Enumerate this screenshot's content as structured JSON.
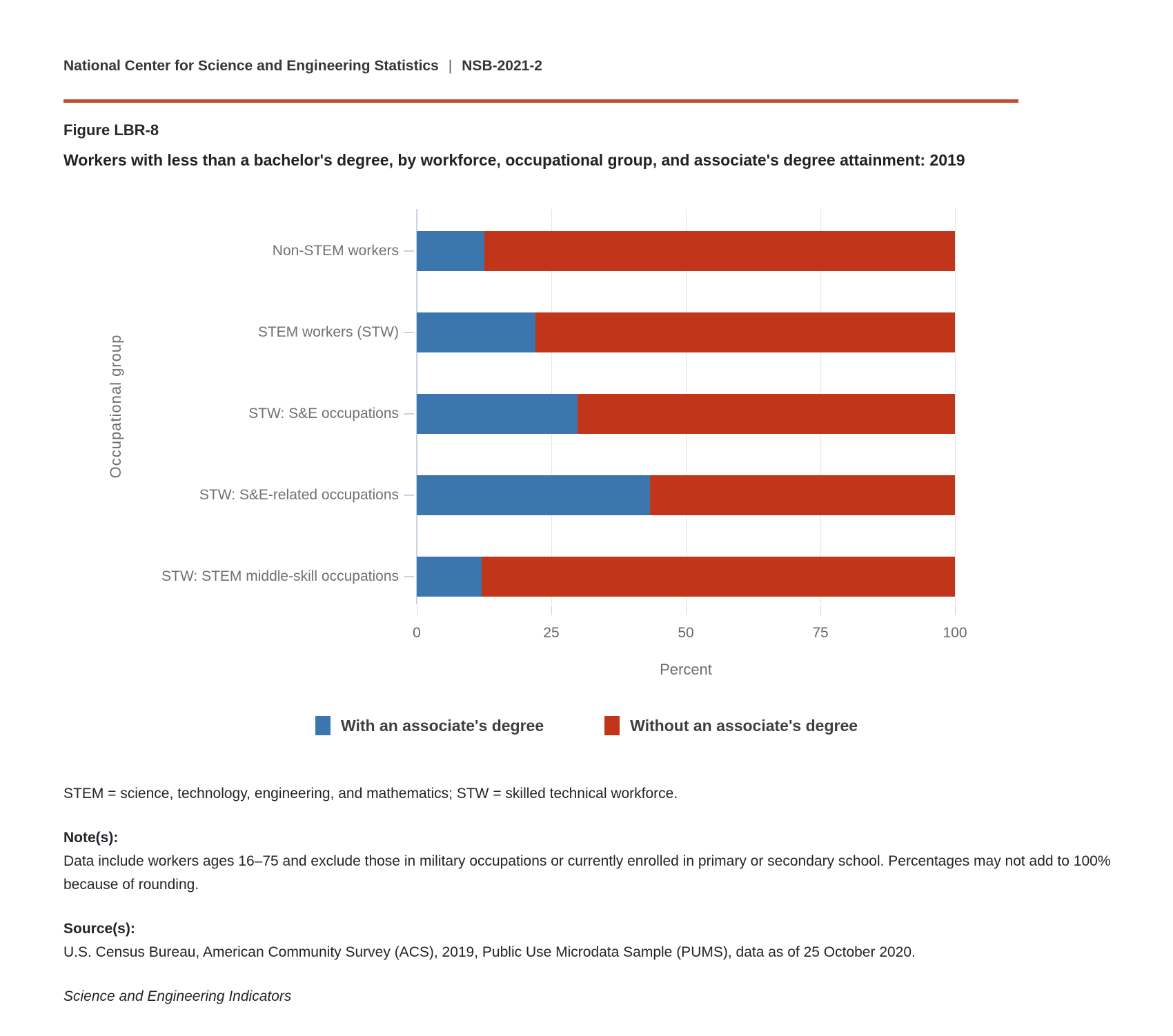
{
  "header": {
    "org": "National Center for Science and Engineering Statistics",
    "separator": "|",
    "report_id": "NSB-2021-2"
  },
  "figure": {
    "label": "Figure LBR-8",
    "title": "Workers with less than a bachelor's degree, by workforce, occupational group, and associate's degree attainment: 2019"
  },
  "chart_data": {
    "type": "bar",
    "orientation": "horizontal",
    "stacked": true,
    "categories": [
      "Non-STEM workers",
      "STEM workers (STW)",
      "STW: S&E occupations",
      "STW: S&E-related occupations",
      "STW: STEM middle-skill occupations"
    ],
    "series": [
      {
        "name": "With an associate's degree",
        "color": "#3b76af",
        "values": [
          12.6,
          22.0,
          29.9,
          43.3,
          12.0
        ]
      },
      {
        "name": "Without an associate's degree",
        "color": "#c1351b",
        "values": [
          87.4,
          78.0,
          70.1,
          56.7,
          88.0
        ]
      }
    ],
    "xlabel": "Percent",
    "ylabel": "Occupational group",
    "xlim": [
      0,
      100
    ],
    "xticks": [
      0,
      25,
      50,
      75,
      100
    ],
    "grid": true,
    "legend_position": "bottom"
  },
  "footnotes": {
    "abbreviations": "STEM = science, technology, engineering, and mathematics; STW = skilled technical workforce.",
    "notes_label": "Note(s):",
    "notes_text": "Data include workers ages 16–75 and exclude those in military occupations or currently enrolled in primary or secondary school. Percentages may not add to 100% because of rounding.",
    "sources_label": "Source(s):",
    "sources_text": "U.S. Census Bureau, American Community Survey (ACS), 2019, Public Use Microdata Sample (PUMS), data as of 25 October 2020.",
    "publication": "Science and Engineering Indicators"
  },
  "colors": {
    "accent_rule": "#c24e32",
    "grid_line": "#e5e5e9",
    "axis_line": "#c9d3e6",
    "category_tick": "#c9d3e6"
  }
}
